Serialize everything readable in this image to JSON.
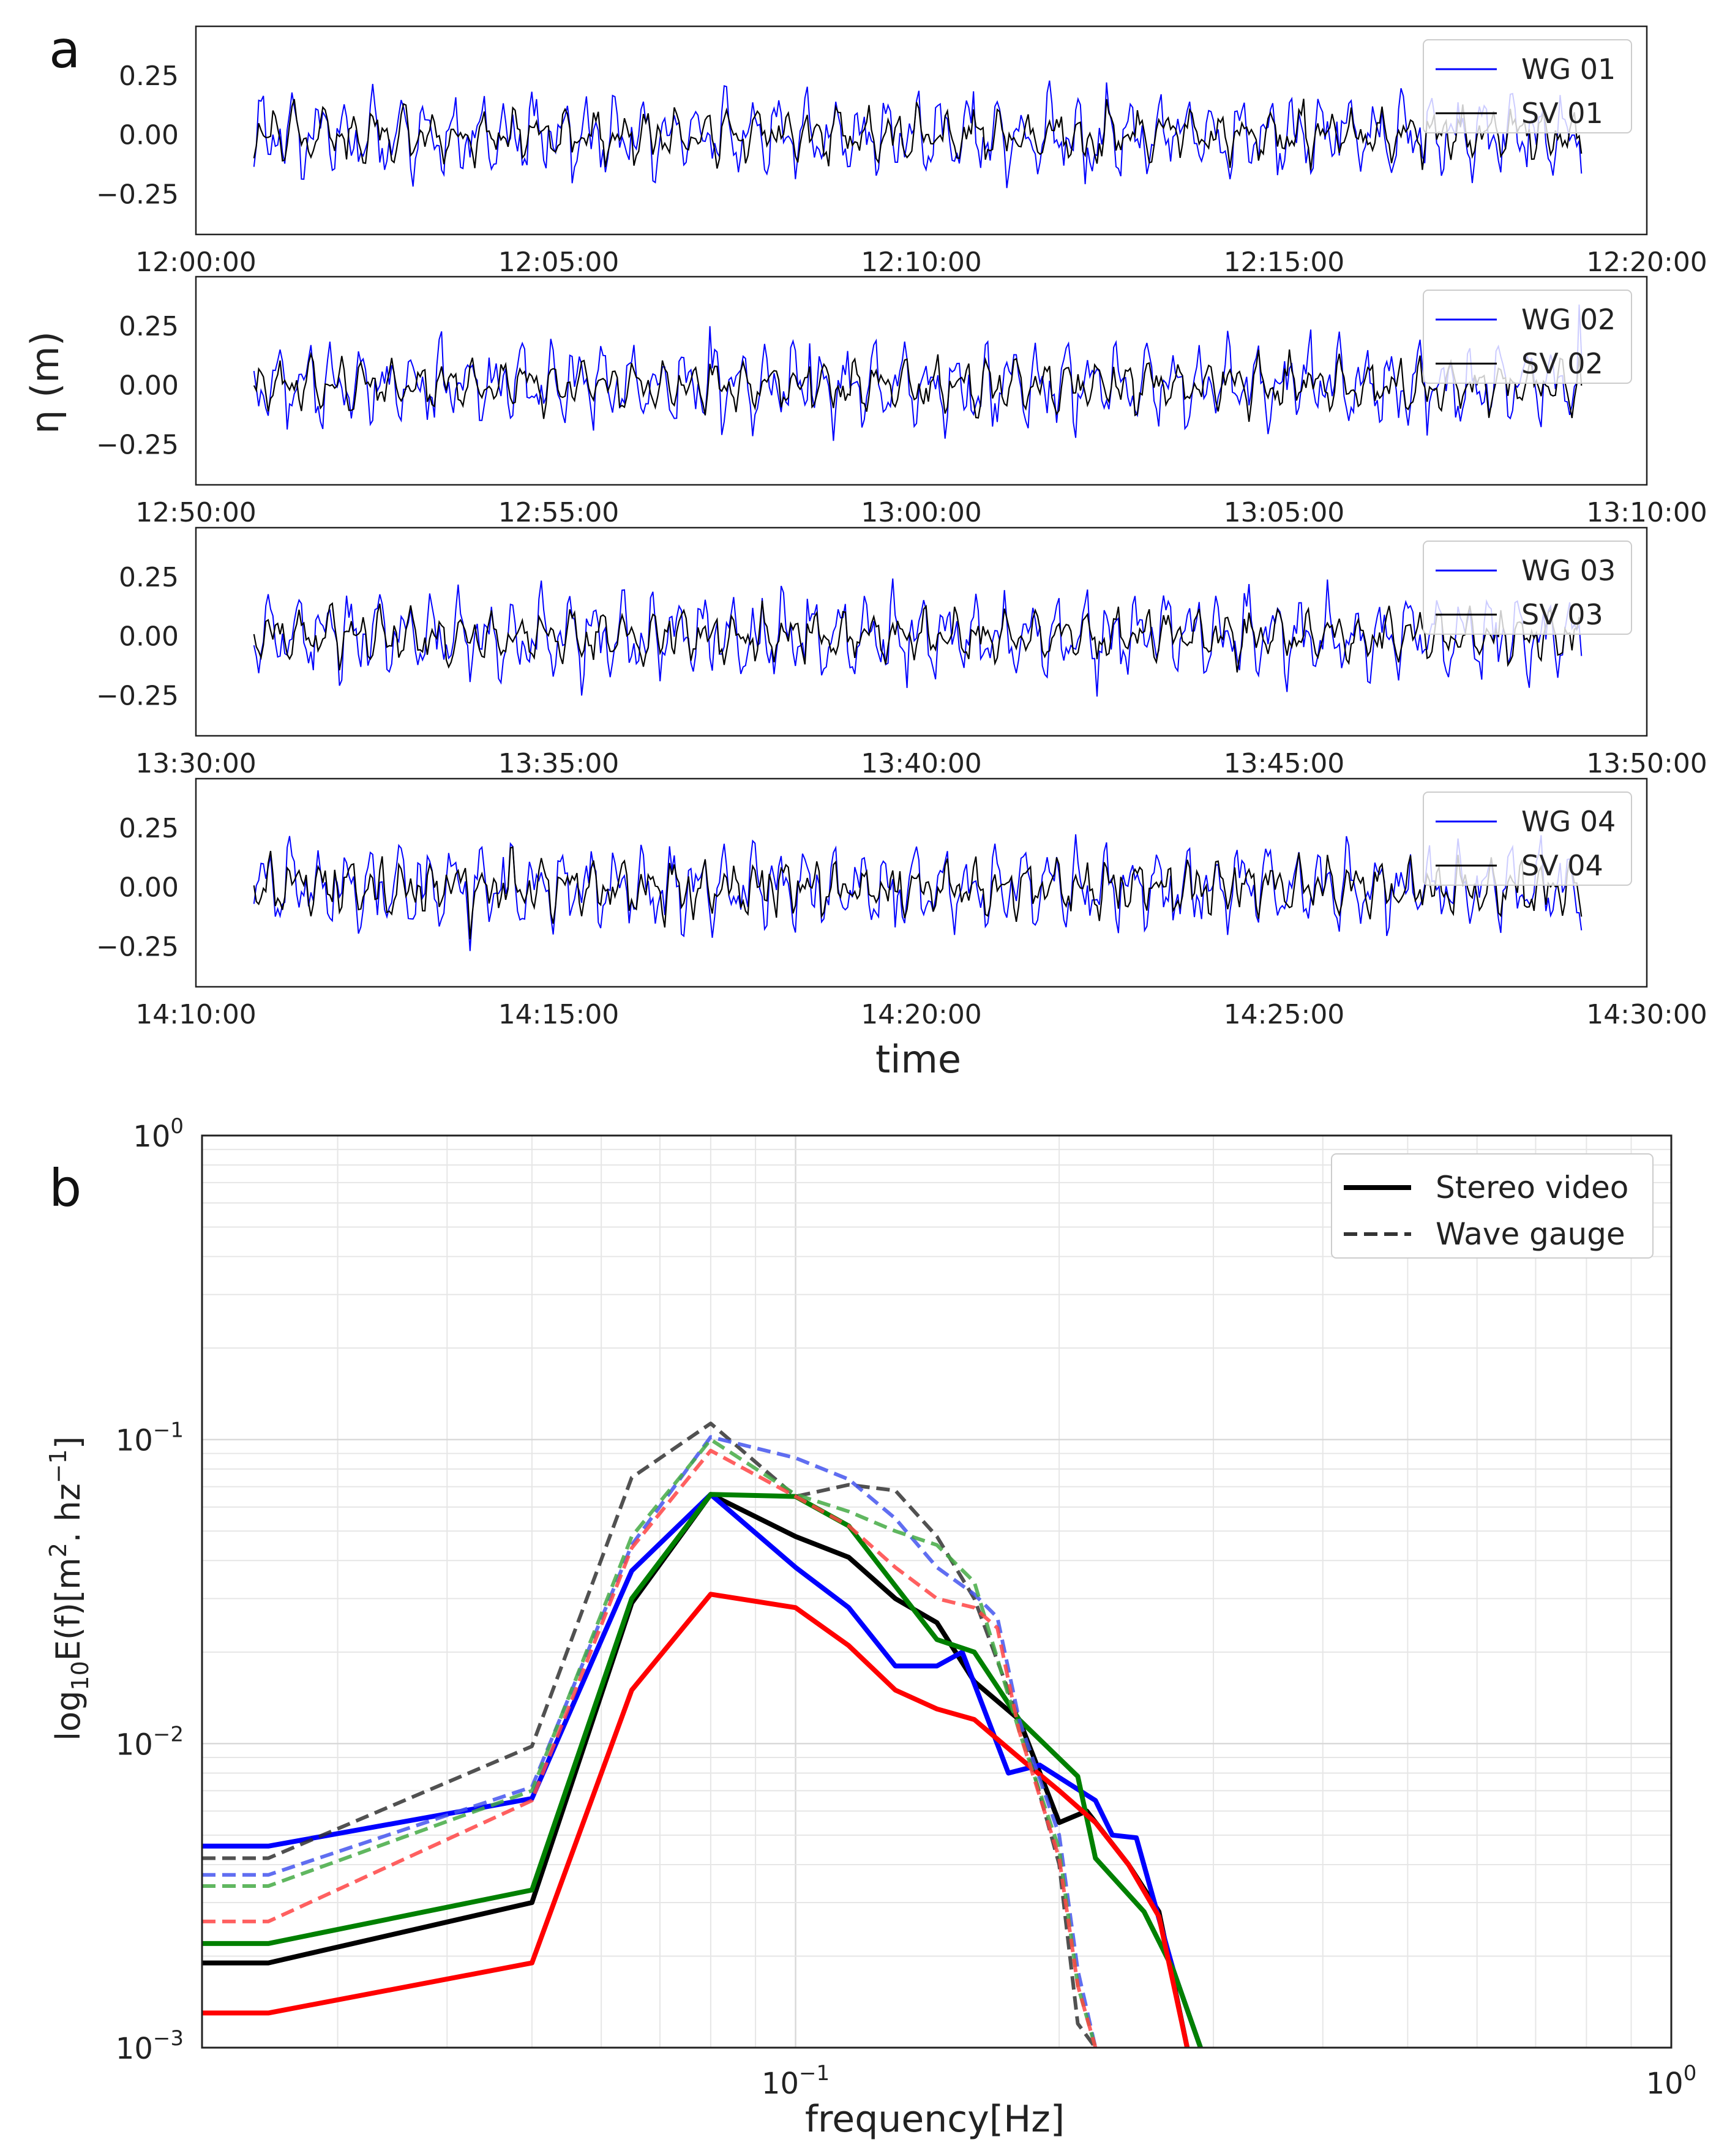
{
  "panel_a": {
    "label": "a",
    "ylabel": "η (m)",
    "xlabel": "time",
    "yticks": [
      "0.25",
      "0.00",
      "−0.25"
    ],
    "ytick_values": [
      0.25,
      0.0,
      -0.25
    ],
    "ylim": [
      -0.42,
      0.46
    ],
    "colors": {
      "wave_gauge": "#0000ff",
      "stereo_video": "#000000"
    },
    "subplots": [
      {
        "xticks": [
          "12:00:00",
          "12:05:00",
          "12:10:00",
          "12:15:00",
          "12:20:00"
        ],
        "legend": [
          "WG 01",
          "SV 01"
        ],
        "seed": 11
      },
      {
        "xticks": [
          "12:50:00",
          "12:55:00",
          "13:00:00",
          "13:05:00",
          "13:10:00"
        ],
        "legend": [
          "WG 02",
          "SV 02"
        ],
        "seed": 23
      },
      {
        "xticks": [
          "13:30:00",
          "13:35:00",
          "13:40:00",
          "13:45:00",
          "13:50:00"
        ],
        "legend": [
          "WG 03",
          "SV 03"
        ],
        "seed": 37
      },
      {
        "xticks": [
          "14:10:00",
          "14:15:00",
          "14:20:00",
          "14:25:00",
          "14:30:00"
        ],
        "legend": [
          "WG 04",
          "SV 04"
        ],
        "seed": 53
      }
    ]
  },
  "chart_data": [
    {
      "type": "line",
      "title": "a",
      "xlabel": "time",
      "ylabel": "η (m)",
      "ylim": [
        -0.42,
        0.46
      ],
      "xlim_minutes": [
        0,
        20
      ],
      "series": [
        {
          "name": "WG 01",
          "description": "surface elevation time series, approx amplitude ±0.25 m"
        },
        {
          "name": "SV 01",
          "description": "surface elevation time series, approx amplitude ±0.25 m"
        },
        {
          "name": "WG 02",
          "description": "surface elevation time series"
        },
        {
          "name": "SV 02",
          "description": "surface elevation time series"
        },
        {
          "name": "WG 03",
          "description": "surface elevation time series"
        },
        {
          "name": "SV 03",
          "description": "surface elevation time series"
        },
        {
          "name": "WG 04",
          "description": "surface elevation time series"
        },
        {
          "name": "SV 04",
          "description": "surface elevation time series"
        }
      ]
    },
    {
      "type": "line",
      "title": "b",
      "xlabel": "frequency[Hz]",
      "ylabel": "log10E(f)[m2. hz−1]",
      "xscale": "log",
      "yscale": "log",
      "xlim": [
        0.021,
        1.0
      ],
      "ylim": [
        0.001,
        1.0
      ],
      "legend": [
        "Stereo video",
        "Wave gauge"
      ],
      "series": [
        {
          "name": "SV black",
          "color": "#000000",
          "style": "solid",
          "points": [
            [
              0.021,
              0.0019
            ],
            [
              0.025,
              0.0019
            ],
            [
              0.05,
              0.003
            ],
            [
              0.065,
              0.029
            ],
            [
              0.08,
              0.066
            ],
            [
              0.1,
              0.048
            ],
            [
              0.115,
              0.041
            ],
            [
              0.13,
              0.03
            ],
            [
              0.145,
              0.025
            ],
            [
              0.16,
              0.016
            ],
            [
              0.18,
              0.012
            ],
            [
              0.2,
              0.0055
            ],
            [
              0.215,
              0.006
            ],
            [
              0.24,
              0.004
            ],
            [
              0.26,
              0.0028
            ],
            [
              0.28,
              0.001
            ]
          ]
        },
        {
          "name": "SV blue",
          "color": "#0000ff",
          "style": "solid",
          "points": [
            [
              0.021,
              0.0046
            ],
            [
              0.025,
              0.0046
            ],
            [
              0.05,
              0.0066
            ],
            [
              0.065,
              0.037
            ],
            [
              0.08,
              0.066
            ],
            [
              0.1,
              0.038
            ],
            [
              0.115,
              0.028
            ],
            [
              0.13,
              0.018
            ],
            [
              0.145,
              0.018
            ],
            [
              0.155,
              0.02
            ],
            [
              0.175,
              0.008
            ],
            [
              0.19,
              0.0085
            ],
            [
              0.22,
              0.0065
            ],
            [
              0.23,
              0.005
            ],
            [
              0.245,
              0.0049
            ],
            [
              0.27,
              0.0018
            ],
            [
              0.29,
              0.001
            ]
          ]
        },
        {
          "name": "SV green",
          "color": "#008000",
          "style": "solid",
          "points": [
            [
              0.021,
              0.0022
            ],
            [
              0.025,
              0.0022
            ],
            [
              0.05,
              0.0033
            ],
            [
              0.065,
              0.03
            ],
            [
              0.08,
              0.066
            ],
            [
              0.1,
              0.065
            ],
            [
              0.115,
              0.052
            ],
            [
              0.13,
              0.033
            ],
            [
              0.145,
              0.022
            ],
            [
              0.16,
              0.02
            ],
            [
              0.18,
              0.012
            ],
            [
              0.21,
              0.0078
            ],
            [
              0.22,
              0.0042
            ],
            [
              0.25,
              0.0028
            ],
            [
              0.27,
              0.0018
            ],
            [
              0.29,
              0.001
            ]
          ]
        },
        {
          "name": "SV red",
          "color": "#ff0000",
          "style": "solid",
          "points": [
            [
              0.021,
              0.0013
            ],
            [
              0.025,
              0.0013
            ],
            [
              0.05,
              0.0019
            ],
            [
              0.065,
              0.015
            ],
            [
              0.08,
              0.031
            ],
            [
              0.1,
              0.028
            ],
            [
              0.115,
              0.021
            ],
            [
              0.13,
              0.015
            ],
            [
              0.145,
              0.013
            ],
            [
              0.16,
              0.012
            ],
            [
              0.18,
              0.009
            ],
            [
              0.2,
              0.007
            ],
            [
              0.22,
              0.0055
            ],
            [
              0.24,
              0.004
            ],
            [
              0.26,
              0.0027
            ],
            [
              0.28,
              0.001
            ]
          ]
        },
        {
          "name": "WG black",
          "color": "#333333",
          "style": "dashed",
          "points": [
            [
              0.021,
              0.0042
            ],
            [
              0.025,
              0.0042
            ],
            [
              0.05,
              0.0098
            ],
            [
              0.065,
              0.075
            ],
            [
              0.08,
              0.113
            ],
            [
              0.1,
              0.065
            ],
            [
              0.115,
              0.071
            ],
            [
              0.13,
              0.068
            ],
            [
              0.145,
              0.048
            ],
            [
              0.16,
              0.03
            ],
            [
              0.18,
              0.012
            ],
            [
              0.2,
              0.004
            ],
            [
              0.21,
              0.0012
            ],
            [
              0.22,
              0.001
            ]
          ]
        },
        {
          "name": "WG blue",
          "color": "#4455ee",
          "style": "dashed",
          "points": [
            [
              0.021,
              0.0037
            ],
            [
              0.025,
              0.0037
            ],
            [
              0.05,
              0.0072
            ],
            [
              0.065,
              0.045
            ],
            [
              0.08,
              0.102
            ],
            [
              0.1,
              0.087
            ],
            [
              0.115,
              0.074
            ],
            [
              0.13,
              0.055
            ],
            [
              0.145,
              0.038
            ],
            [
              0.16,
              0.031
            ],
            [
              0.17,
              0.026
            ],
            [
              0.18,
              0.012
            ],
            [
              0.2,
              0.005
            ],
            [
              0.21,
              0.0018
            ],
            [
              0.22,
              0.001
            ]
          ]
        },
        {
          "name": "WG green",
          "color": "#44aa44",
          "style": "dashed",
          "points": [
            [
              0.021,
              0.0034
            ],
            [
              0.025,
              0.0034
            ],
            [
              0.05,
              0.007
            ],
            [
              0.065,
              0.048
            ],
            [
              0.08,
              0.1
            ],
            [
              0.1,
              0.066
            ],
            [
              0.115,
              0.058
            ],
            [
              0.13,
              0.05
            ],
            [
              0.145,
              0.045
            ],
            [
              0.16,
              0.034
            ],
            [
              0.18,
              0.011
            ],
            [
              0.2,
              0.0045
            ],
            [
              0.21,
              0.0016
            ],
            [
              0.22,
              0.001
            ]
          ]
        },
        {
          "name": "WG red",
          "color": "#ff4444",
          "style": "dashed",
          "points": [
            [
              0.021,
              0.0026
            ],
            [
              0.025,
              0.0026
            ],
            [
              0.05,
              0.0065
            ],
            [
              0.065,
              0.044
            ],
            [
              0.08,
              0.092
            ],
            [
              0.1,
              0.065
            ],
            [
              0.115,
              0.052
            ],
            [
              0.13,
              0.038
            ],
            [
              0.145,
              0.03
            ],
            [
              0.16,
              0.028
            ],
            [
              0.17,
              0.024
            ],
            [
              0.18,
              0.011
            ],
            [
              0.2,
              0.0042
            ],
            [
              0.21,
              0.0016
            ],
            [
              0.22,
              0.001
            ]
          ]
        }
      ]
    }
  ],
  "panel_b": {
    "label": "b",
    "xlabel": "frequency[Hz]",
    "ylabel_main": "log",
    "ylabel_sub": "10",
    "ylabel_mid": "E(f)[m",
    "ylabel_sup1": "2",
    "ylabel_mid2": ". hz",
    "ylabel_sup2": "−1",
    "ylabel_end": "]",
    "yticks": [
      {
        "base": "10",
        "exp": "0",
        "value": 1.0
      },
      {
        "base": "10",
        "exp": "−1",
        "value": 0.1
      },
      {
        "base": "10",
        "exp": "−2",
        "value": 0.01
      },
      {
        "base": "10",
        "exp": "−3",
        "value": 0.001
      }
    ],
    "xticks": [
      {
        "base": "10",
        "exp": "−1",
        "value": 0.1
      },
      {
        "base": "10",
        "exp": "0",
        "value": 1.0
      }
    ],
    "legend": [
      {
        "label": "Stereo video",
        "style": "solid"
      },
      {
        "label": "Wave gauge",
        "style": "dashed"
      }
    ]
  }
}
